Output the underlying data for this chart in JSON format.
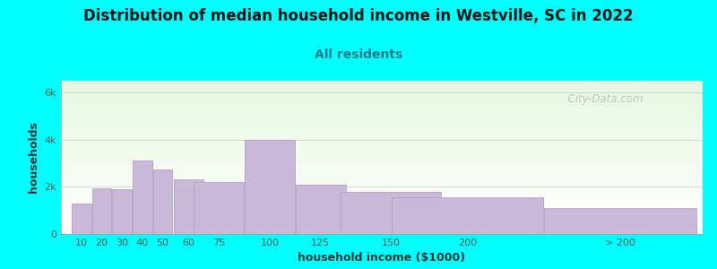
{
  "title": "Distribution of median household income in Westville, SC in 2022",
  "subtitle": "All residents",
  "xlabel": "household income ($1000)",
  "ylabel": "households",
  "background_outer": "#00FFFF",
  "bar_color": "#c9b8d8",
  "bar_edge_color": "#b0a0cc",
  "yticks": [
    0,
    2000,
    4000,
    6000
  ],
  "ytick_labels": [
    "0",
    "2k",
    "4k",
    "6k"
  ],
  "ylim": [
    0,
    6500
  ],
  "categories": [
    "10",
    "20",
    "30",
    "40",
    "50",
    "60",
    "75",
    "100",
    "125",
    "150",
    "200",
    "> 200"
  ],
  "values": [
    1300,
    1950,
    1900,
    3100,
    2750,
    2300,
    2200,
    4000,
    2100,
    1800,
    1550,
    1100
  ],
  "bar_widths": [
    10,
    10,
    10,
    10,
    10,
    15,
    25,
    25,
    25,
    50,
    75,
    75
  ],
  "bar_lefts": [
    5,
    15,
    25,
    35,
    45,
    55,
    65,
    90,
    115,
    137,
    162,
    237
  ],
  "xlim": [
    0,
    315
  ],
  "watermark": "  City-Data.com",
  "title_fontsize": 12,
  "subtitle_fontsize": 10,
  "axis_label_fontsize": 9,
  "tick_fontsize": 8
}
